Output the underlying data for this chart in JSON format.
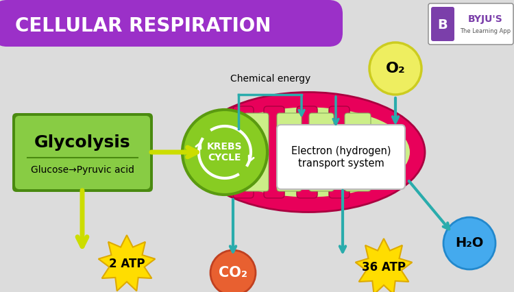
{
  "title": "CELLULAR RESPIRATION",
  "title_bg": "#9B30C8",
  "title_color": "#FFFFFF",
  "bg_color": "#DCDCDC",
  "glycolysis_bg": "#88CC44",
  "glycolysis_border": "#4A8A10",
  "glycolysis_label": "Glycolysis",
  "glycolysis_sublabel": "Glucose→Pyruvic acid",
  "krebs_color": "#88CC22",
  "krebs_dark": "#5A9A10",
  "krebs_label1": "KREBS",
  "krebs_label2": "CYCLE",
  "electron_label1": "Electron (hydrogen)",
  "electron_label2": "transport system",
  "mito_red": "#E8005A",
  "mito_pink": "#F04080",
  "mito_green": "#CCEE88",
  "mito_dark_green": "#AACCA0",
  "chemical_energy_label": "Chemical energy",
  "atp2_label": "2 ATP",
  "atp36_label": "36 ATP",
  "co2_label": "CO₂",
  "o2_label": "O₂",
  "h2o_label": "H₂O",
  "arrow_yellow": "#CCDD00",
  "arrow_teal": "#2AACAC",
  "atp_color": "#FFDD00",
  "atp_edge": "#DDAA00",
  "co2_color": "#E86030",
  "co2_edge": "#C04020",
  "o2_color": "#EEEE60",
  "o2_edge": "#CCCC20",
  "h2o_color": "#44AAEE",
  "h2o_edge": "#2288CC"
}
